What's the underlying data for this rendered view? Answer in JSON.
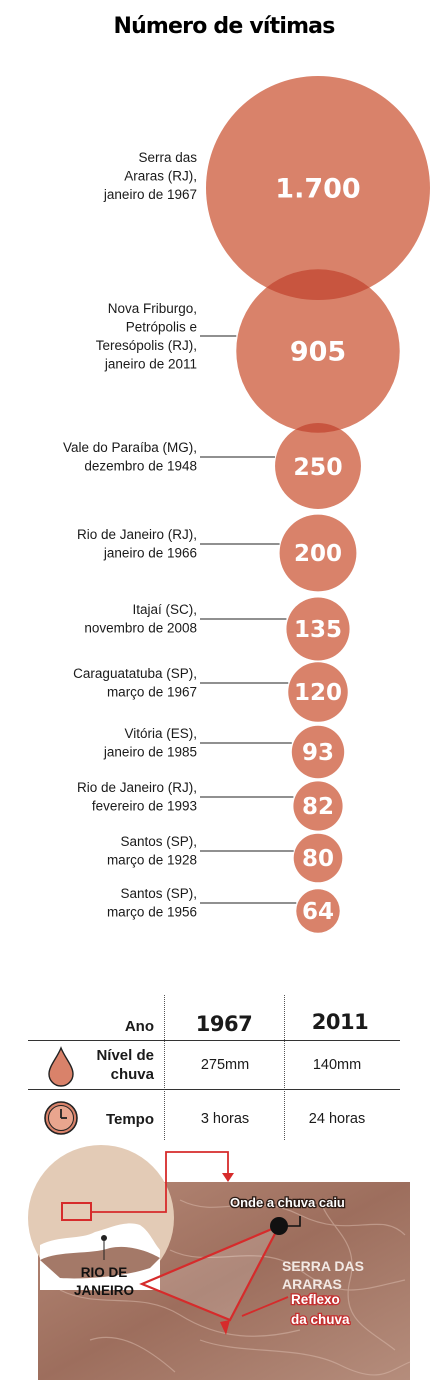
{
  "title": "Número de vítimas",
  "chart_data": {
    "type": "bubble",
    "title": "Número de vítimas",
    "categories": [
      [
        "Serra das",
        "Araras (RJ),",
        "janeiro de 1967"
      ],
      [
        "Nova Friburgo,",
        "Petrópolis e",
        "Teresópolis (RJ),",
        "janeiro de 2011"
      ],
      [
        "Vale do Paraíba (MG),",
        "dezembro de 1948"
      ],
      [
        "Rio de Janeiro (RJ),",
        "janeiro de 1966"
      ],
      [
        "Itajaí (SC),",
        "novembro de 2008"
      ],
      [
        "Caraguatatuba (SP),",
        "março de 1967"
      ],
      [
        "Vitória (ES),",
        "janeiro de 1985"
      ],
      [
        "Rio de Janeiro (RJ),",
        "fevereiro de 1993"
      ],
      [
        "Santos (SP),",
        "março de 1928"
      ],
      [
        "Santos (SP),",
        "março de 1956"
      ]
    ],
    "values": [
      1700,
      905,
      250,
      200,
      135,
      120,
      93,
      82,
      80,
      64
    ],
    "value_labels": [
      "1.700",
      "905",
      "250",
      "200",
      "135",
      "120",
      "93",
      "82",
      "80",
      "64"
    ],
    "bubble_color": "#d9826a",
    "overlap_color": "#c8553f"
  },
  "comparison": {
    "header_label": "Ano",
    "years": [
      "1967",
      "2011"
    ],
    "rows": [
      {
        "label": "Nível de chuva",
        "label_lines": [
          "Nível de",
          "chuva"
        ],
        "icon": "raindrop-icon",
        "values": [
          "275mm",
          "140mm"
        ]
      },
      {
        "label": "Tempo",
        "label_lines": [
          "Tempo"
        ],
        "icon": "clock-icon",
        "values": [
          "3 horas",
          "24 horas"
        ]
      }
    ]
  },
  "map": {
    "inset_label": [
      "RIO DE",
      "JANEIRO"
    ],
    "rain_label": "Onde a chuva caiu",
    "region_label": [
      "SERRA DAS",
      "ARARAS"
    ],
    "reflex_label": [
      "Reflexo",
      "da chuva"
    ],
    "accent_color": "#d62b2b"
  }
}
